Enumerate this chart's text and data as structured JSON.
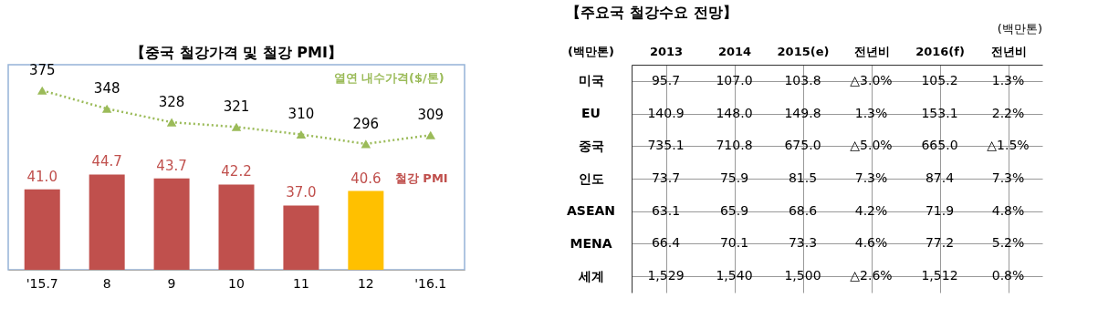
{
  "chart_data": [
    {
      "type": "bar",
      "title": "【중국 철강가격 및 철강 PMI】",
      "categories": [
        "'15.7",
        "8",
        "9",
        "10",
        "11",
        "12",
        "'16.1"
      ],
      "ylim": [
        21,
        72
      ],
      "y2lim": [
        110,
        413
      ],
      "data_labels": true,
      "grid": false,
      "marker": "triangle",
      "line_style": "dotted",
      "series": [
        {
          "name": "철강 PMI",
          "type": "bar",
          "colors": [
            "#c0504d",
            "#c0504d",
            "#c0504d",
            "#c0504d",
            "#c0504d",
            "#ffc000",
            null
          ],
          "color": "#c0504d",
          "values": [
            41.0,
            44.7,
            43.7,
            42.2,
            37.0,
            40.6,
            null
          ],
          "value_labels": [
            "41.0",
            "44.7",
            "43.7",
            "42.2",
            "37.0",
            "40.6",
            null
          ]
        },
        {
          "name": "열연 내수가격($/톤)",
          "type": "line",
          "axis": "y2",
          "color": "#9bbb59",
          "values": [
            375,
            348,
            328,
            321,
            310,
            296,
            309
          ]
        }
      ]
    },
    {
      "type": "other",
      "title": "【주요국 철강수요 전망】",
      "annotations": [
        "(백만톤)"
      ],
      "ylabel": "(백만톤)",
      "categories": [
        "2013",
        "2014",
        "2015(e)",
        "전년비",
        "2016(f)",
        "전년비"
      ],
      "y_categories": [
        "미국",
        "EU",
        "중국",
        "인도",
        "ASEAN",
        "MENA",
        "세계"
      ],
      "cell_labels": [
        [
          "95.7",
          "107.0",
          "103.8",
          "△3.0%",
          "105.2",
          "1.3%"
        ],
        [
          "140.9",
          "148.0",
          "149.8",
          "1.3%",
          "153.1",
          "2.2%"
        ],
        [
          "735.1",
          "710.8",
          "675.0",
          "△5.0%",
          "665.0",
          "△1.5%"
        ],
        [
          "73.7",
          "75.9",
          "81.5",
          "7.3%",
          "87.4",
          "7.3%"
        ],
        [
          "63.1",
          "65.9",
          "68.6",
          "4.2%",
          "71.9",
          "4.8%"
        ],
        [
          "66.4",
          "70.1",
          "73.3",
          "4.6%",
          "77.2",
          "5.2%"
        ],
        [
          "1,529",
          "1,540",
          "1,500",
          "△2.6%",
          "1,512",
          "0.8%"
        ]
      ]
    }
  ]
}
